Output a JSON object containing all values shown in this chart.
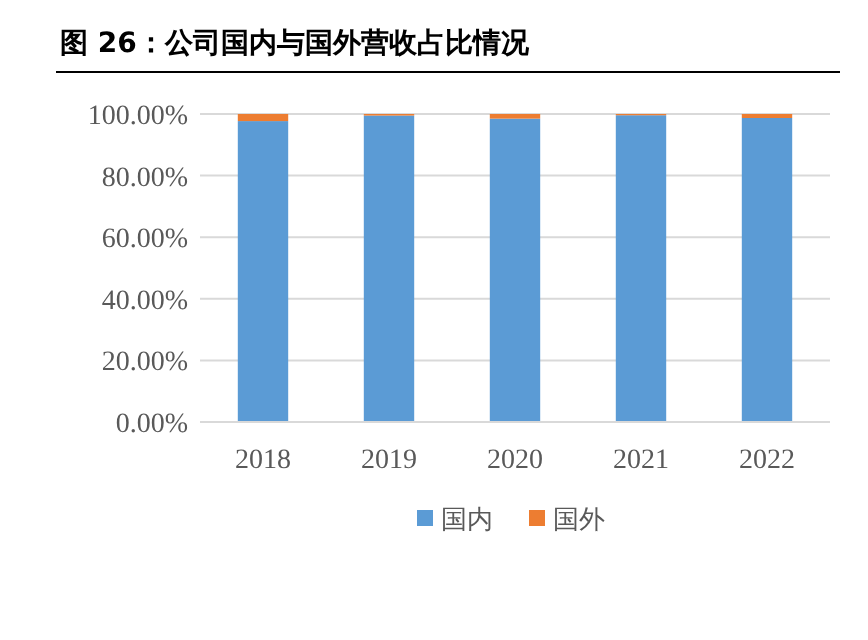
{
  "chart_data": {
    "type": "bar",
    "title": "图 26：公司国内与国外营收占比情况",
    "stacked": true,
    "categories": [
      "2018",
      "2019",
      "2020",
      "2021",
      "2022"
    ],
    "series": [
      {
        "name": "国内",
        "color": "#5b9bd5",
        "values": [
          97.7,
          99.5,
          98.5,
          99.6,
          98.7
        ]
      },
      {
        "name": "国外",
        "color": "#ed7d31",
        "values": [
          2.3,
          0.5,
          1.5,
          0.4,
          1.3
        ]
      }
    ],
    "ylim": [
      0,
      100
    ],
    "yticks": [
      {
        "value": 0,
        "label": "0.00%"
      },
      {
        "value": 20,
        "label": "20.00%"
      },
      {
        "value": 40,
        "label": "40.00%"
      },
      {
        "value": 60,
        "label": "60.00%"
      },
      {
        "value": 80,
        "label": "80.00%"
      },
      {
        "value": 100,
        "label": "100.00%"
      }
    ],
    "grid": "y",
    "legend": "bottom"
  }
}
